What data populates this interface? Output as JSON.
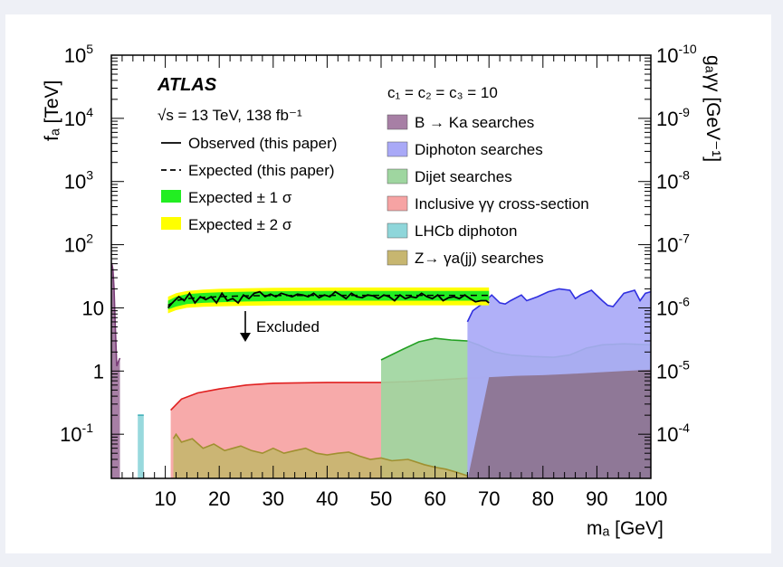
{
  "chart_data": {
    "type": "area",
    "title": "ATLAS",
    "subtitle": "√s = 13 TeV, 138 fb⁻¹",
    "coupling_note": "c₁ = c₂ = c₃ = 10",
    "xlabel": "mₐ [GeV]",
    "ylabel": "fₐ [TeV]",
    "y2label": "gₐγγ [GeV⁻¹]",
    "xlim": [
      0,
      100
    ],
    "ylim": [
      0.02,
      100000
    ],
    "yscale": "log",
    "x_ticks": [
      10,
      20,
      30,
      40,
      50,
      60,
      70,
      80,
      90,
      100
    ],
    "y_ticks": [
      {
        "value": 0.1,
        "label": "10",
        "exp": "-1"
      },
      {
        "value": 1,
        "label": "1",
        "exp": ""
      },
      {
        "value": 10,
        "label": "10",
        "exp": ""
      },
      {
        "value": 100,
        "label": "10",
        "exp": "2"
      },
      {
        "value": 1000,
        "label": "10",
        "exp": "3"
      },
      {
        "value": 10000,
        "label": "10",
        "exp": "4"
      },
      {
        "value": 100000,
        "label": "10",
        "exp": "5"
      }
    ],
    "y2_ticks": [
      {
        "value": 0.0001,
        "label": "10",
        "exp": "-4"
      },
      {
        "value": 1e-05,
        "label": "10",
        "exp": "-5"
      },
      {
        "value": 1e-06,
        "label": "10",
        "exp": "-6"
      },
      {
        "value": 1e-07,
        "label": "10",
        "exp": "-7"
      },
      {
        "value": 1e-08,
        "label": "10",
        "exp": "-8"
      },
      {
        "value": 1e-09,
        "label": "10",
        "exp": "-9"
      },
      {
        "value": 1e-10,
        "label": "10",
        "exp": "-10"
      }
    ],
    "excluded_label": "Excluded",
    "legend_left": [
      {
        "label": "Observed (this paper)",
        "style": "solid"
      },
      {
        "label": "Expected (this paper)",
        "style": "dashed"
      },
      {
        "label": "Expected ± 1 σ",
        "color": "#22ee22"
      },
      {
        "label": "Expected ± 2 σ",
        "color": "#ffff00"
      }
    ],
    "legend_right": [
      {
        "label": "B → Ka searches",
        "color": "#a77fa5"
      },
      {
        "label": "Diphoton searches",
        "color": "#a9a9f7"
      },
      {
        "label": "Dijet searches",
        "color": "#9fd6a0"
      },
      {
        "label": "Inclusive γγ cross-section",
        "color": "#f6a3a3"
      },
      {
        "label": "LHCb diphoton",
        "color": "#8fd6da"
      },
      {
        "label": "Z→ γa(jj) searches",
        "color": "#c7b670"
      }
    ],
    "series": [
      {
        "name": "Inclusive γγ cross-section",
        "color": "#f6a3a3",
        "stroke": "#e02020",
        "points": [
          [
            11,
            0.24
          ],
          [
            13,
            0.36
          ],
          [
            16,
            0.45
          ],
          [
            20,
            0.52
          ],
          [
            25,
            0.6
          ],
          [
            30,
            0.64
          ],
          [
            40,
            0.66
          ],
          [
            50,
            0.66
          ],
          [
            55,
            0.68
          ],
          [
            60,
            0.72
          ],
          [
            65,
            0.76
          ],
          [
            70,
            0.8
          ],
          [
            75,
            0.84
          ],
          [
            80,
            0.86
          ],
          [
            85,
            0.9
          ],
          [
            90,
            0.95
          ],
          [
            95,
            1.0
          ],
          [
            100,
            1.05
          ]
        ]
      },
      {
        "name": "Dijet searches",
        "color": "#9fd6a0",
        "stroke": "#22a022",
        "points": [
          [
            50,
            1.5
          ],
          [
            54,
            2.2
          ],
          [
            57,
            2.9
          ],
          [
            60,
            3.3
          ],
          [
            63,
            3.1
          ],
          [
            66,
            3.0
          ],
          [
            68,
            2.6
          ],
          [
            71,
            2.0
          ],
          [
            74,
            1.8
          ],
          [
            78,
            1.7
          ],
          [
            82,
            1.65
          ],
          [
            85,
            1.8
          ],
          [
            88,
            2.3
          ],
          [
            91,
            2.6
          ],
          [
            95,
            2.7
          ],
          [
            100,
            2.6
          ]
        ]
      },
      {
        "name": "Diphoton searches",
        "color": "#a9a9f7",
        "stroke": "#3030e0",
        "points": [
          [
            66,
            6
          ],
          [
            67,
            9
          ],
          [
            69,
            12
          ],
          [
            70.5,
            16
          ],
          [
            72,
            12
          ],
          [
            73,
            11.5
          ],
          [
            74,
            13
          ],
          [
            76,
            16
          ],
          [
            77,
            13
          ],
          [
            79,
            15
          ],
          [
            81,
            18
          ],
          [
            83,
            20
          ],
          [
            85,
            19
          ],
          [
            86,
            14
          ],
          [
            87,
            16
          ],
          [
            89,
            19
          ],
          [
            91,
            13
          ],
          [
            92,
            11
          ],
          [
            93,
            10.5
          ],
          [
            95,
            17
          ],
          [
            97,
            19
          ],
          [
            98,
            13
          ],
          [
            99,
            17
          ],
          [
            100,
            18
          ]
        ]
      },
      {
        "name": "Z→ γa(jj) searches",
        "color": "#c7b670",
        "stroke": "#a09030",
        "points": [
          [
            11.5,
            0.085
          ],
          [
            12,
            0.1
          ],
          [
            13,
            0.075
          ],
          [
            15,
            0.085
          ],
          [
            17,
            0.06
          ],
          [
            19,
            0.07
          ],
          [
            21,
            0.055
          ],
          [
            24,
            0.065
          ],
          [
            26,
            0.055
          ],
          [
            28,
            0.05
          ],
          [
            30,
            0.06
          ],
          [
            32,
            0.05
          ],
          [
            34,
            0.055
          ],
          [
            36,
            0.06
          ],
          [
            38,
            0.05
          ],
          [
            40,
            0.047
          ],
          [
            42,
            0.05
          ],
          [
            44,
            0.052
          ],
          [
            46,
            0.045
          ],
          [
            48,
            0.04
          ],
          [
            50,
            0.042
          ],
          [
            52,
            0.038
          ],
          [
            55,
            0.04
          ],
          [
            58,
            0.033
          ],
          [
            60,
            0.03
          ],
          [
            62,
            0.028
          ],
          [
            64,
            0.025
          ],
          [
            66,
            0.022
          ]
        ]
      },
      {
        "name": "B → Ka searches",
        "color": "#a77fa5",
        "stroke": "#7a3e78",
        "points": [
          [
            0.1,
            50
          ],
          [
            0.3,
            40
          ],
          [
            0.5,
            20
          ],
          [
            0.7,
            6
          ],
          [
            1,
            1.2
          ],
          [
            1.3,
            1.4
          ],
          [
            1.6,
            1.6
          ]
        ]
      },
      {
        "name": "LHCb diphoton",
        "color": "#8fd6da",
        "stroke": "#40b0b8",
        "points": [
          [
            4.9,
            0.2
          ],
          [
            6,
            0.2
          ]
        ]
      },
      {
        "name": "Observed (this paper)",
        "points": [
          [
            10.5,
            10
          ],
          [
            11.5,
            12.5
          ],
          [
            12.5,
            15
          ],
          [
            13.5,
            13
          ],
          [
            14.5,
            17
          ],
          [
            15.5,
            12
          ],
          [
            16.5,
            15
          ],
          [
            17.5,
            13.5
          ],
          [
            18.5,
            15
          ],
          [
            19.5,
            12
          ],
          [
            20.5,
            17
          ],
          [
            21.5,
            13
          ],
          [
            22.5,
            14
          ],
          [
            23.5,
            12
          ],
          [
            24.5,
            16
          ],
          [
            25.5,
            14
          ],
          [
            26.5,
            17
          ],
          [
            27.5,
            18
          ],
          [
            28.5,
            15
          ],
          [
            29.5,
            16.5
          ],
          [
            30.5,
            15
          ],
          [
            31.5,
            17
          ],
          [
            32.5,
            16
          ],
          [
            33.5,
            15
          ],
          [
            34.5,
            16.5
          ],
          [
            35.5,
            16
          ],
          [
            36.5,
            15
          ],
          [
            37.5,
            17
          ],
          [
            38.5,
            14.5
          ],
          [
            39.5,
            16
          ],
          [
            40.5,
            15
          ],
          [
            41.5,
            18
          ],
          [
            42.5,
            16
          ],
          [
            43.5,
            14
          ],
          [
            44.5,
            17
          ],
          [
            45.5,
            15
          ],
          [
            46.5,
            14.5
          ],
          [
            47.5,
            16
          ],
          [
            48.5,
            15.5
          ],
          [
            49.5,
            14
          ],
          [
            50.5,
            16
          ],
          [
            51.5,
            15
          ],
          [
            52.5,
            13
          ],
          [
            53.5,
            16
          ],
          [
            54.5,
            14
          ],
          [
            55.5,
            15
          ],
          [
            56.5,
            14.5
          ],
          [
            57.5,
            17
          ],
          [
            58.5,
            15
          ],
          [
            59.5,
            14
          ],
          [
            60.5,
            16
          ],
          [
            61.5,
            13
          ],
          [
            62.5,
            14.5
          ],
          [
            63.5,
            15
          ],
          [
            64.5,
            14
          ],
          [
            65.5,
            16
          ],
          [
            66.5,
            14
          ],
          [
            67.5,
            12.5
          ],
          [
            68.5,
            13
          ],
          [
            69.5,
            13
          ],
          [
            70,
            12
          ]
        ]
      },
      {
        "name": "Expected (this paper)",
        "points": [
          [
            10.5,
            11
          ],
          [
            12,
            13
          ],
          [
            14,
            14
          ],
          [
            16,
            14.5
          ],
          [
            20,
            15
          ],
          [
            25,
            15.5
          ],
          [
            30,
            15.7
          ],
          [
            40,
            15.8
          ],
          [
            50,
            15.8
          ],
          [
            60,
            15.8
          ],
          [
            70,
            15.8
          ]
        ]
      }
    ],
    "bands": {
      "x": [
        10.5,
        12,
        14,
        17,
        20,
        25,
        30,
        40,
        50,
        60,
        70
      ],
      "two_sigma_low": [
        8.2,
        9.2,
        10,
        10.4,
        10.6,
        10.8,
        10.9,
        11,
        11,
        11,
        11
      ],
      "two_sigma_high": [
        15,
        17,
        18.5,
        19.5,
        20,
        20.5,
        20.8,
        21,
        21,
        21,
        21
      ],
      "one_sigma_low": [
        9.4,
        10.5,
        11.5,
        12,
        12.3,
        12.6,
        12.8,
        13,
        13,
        13,
        13
      ],
      "one_sigma_high": [
        13,
        15,
        16.5,
        17.2,
        17.6,
        18,
        18.3,
        18.5,
        18.5,
        18.5,
        18.5
      ]
    }
  }
}
